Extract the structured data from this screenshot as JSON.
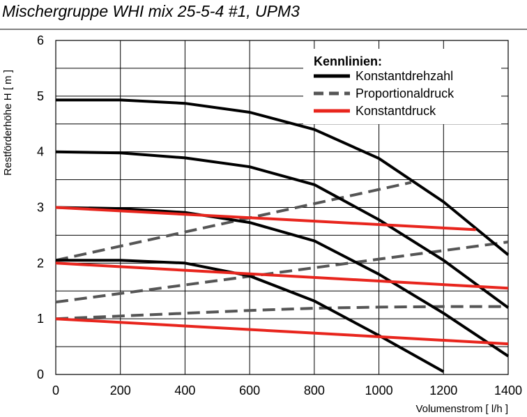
{
  "chart_data": {
    "type": "line",
    "title": "Mischergruppe WHI mix 25-5-4 #1, UPM3",
    "xlabel": "Volumenstrom [ l/h ]",
    "ylabel": "Restförderhöhe H [ m ]",
    "xlim": [
      0,
      1400
    ],
    "ylim": [
      0,
      6
    ],
    "xticks": [
      0,
      200,
      400,
      600,
      800,
      1000,
      1200,
      1400
    ],
    "yticks": [
      0,
      1,
      2,
      3,
      4,
      5,
      6
    ],
    "grid": true,
    "legend": {
      "title": "Kennlinien:",
      "position": "top-right",
      "entries": [
        {
          "label": "Konstantdrehzahl",
          "color": "#000000",
          "style": "solid"
        },
        {
          "label": "Proportionaldruck",
          "color": "#555555",
          "style": "dashed"
        },
        {
          "label": "Konstantdruck",
          "color": "#e8251d",
          "style": "solid"
        }
      ]
    },
    "series": [
      {
        "group": "Konstantdrehzahl",
        "color": "#000000",
        "style": "solid",
        "points": [
          [
            0,
            4.93
          ],
          [
            200,
            4.93
          ],
          [
            400,
            4.87
          ],
          [
            600,
            4.71
          ],
          [
            800,
            4.4
          ],
          [
            1000,
            3.88
          ],
          [
            1200,
            3.1
          ],
          [
            1400,
            2.15
          ]
        ]
      },
      {
        "group": "Konstantdrehzahl",
        "color": "#000000",
        "style": "solid",
        "points": [
          [
            0,
            4.0
          ],
          [
            200,
            3.98
          ],
          [
            400,
            3.89
          ],
          [
            600,
            3.73
          ],
          [
            800,
            3.41
          ],
          [
            1000,
            2.78
          ],
          [
            1200,
            2.05
          ],
          [
            1400,
            1.2
          ]
        ]
      },
      {
        "group": "Konstantdrehzahl",
        "color": "#000000",
        "style": "solid",
        "points": [
          [
            0,
            3.0
          ],
          [
            200,
            2.98
          ],
          [
            400,
            2.91
          ],
          [
            600,
            2.73
          ],
          [
            800,
            2.4
          ],
          [
            1000,
            1.8
          ],
          [
            1200,
            1.1
          ],
          [
            1400,
            0.33
          ]
        ]
      },
      {
        "group": "Konstantdrehzahl",
        "color": "#000000",
        "style": "solid",
        "points": [
          [
            0,
            2.05
          ],
          [
            200,
            2.05
          ],
          [
            400,
            2.0
          ],
          [
            600,
            1.77
          ],
          [
            800,
            1.32
          ],
          [
            1000,
            0.7
          ],
          [
            1200,
            0.05
          ]
        ]
      },
      {
        "group": "Proportionaldruck",
        "color": "#555555",
        "style": "dashed",
        "points": [
          [
            0,
            2.05
          ],
          [
            1100,
            3.45
          ]
        ]
      },
      {
        "group": "Proportionaldruck",
        "color": "#555555",
        "style": "dashed",
        "points": [
          [
            0,
            1.3
          ],
          [
            1400,
            2.38
          ]
        ]
      },
      {
        "group": "Proportionaldruck",
        "color": "#555555",
        "style": "dashed",
        "points": [
          [
            0,
            1.0
          ],
          [
            200,
            1.05
          ],
          [
            400,
            1.1
          ],
          [
            600,
            1.15
          ],
          [
            800,
            1.19
          ],
          [
            1000,
            1.21
          ],
          [
            1200,
            1.22
          ],
          [
            1400,
            1.22
          ]
        ]
      },
      {
        "group": "Konstantdruck",
        "color": "#e8251d",
        "style": "solid",
        "points": [
          [
            0,
            3.0
          ],
          [
            1300,
            2.6
          ]
        ]
      },
      {
        "group": "Konstantdruck",
        "color": "#e8251d",
        "style": "solid",
        "points": [
          [
            0,
            2.0
          ],
          [
            1400,
            1.55
          ]
        ]
      },
      {
        "group": "Konstantdruck",
        "color": "#e8251d",
        "style": "solid",
        "points": [
          [
            0,
            1.0
          ],
          [
            1400,
            0.55
          ]
        ]
      }
    ]
  }
}
